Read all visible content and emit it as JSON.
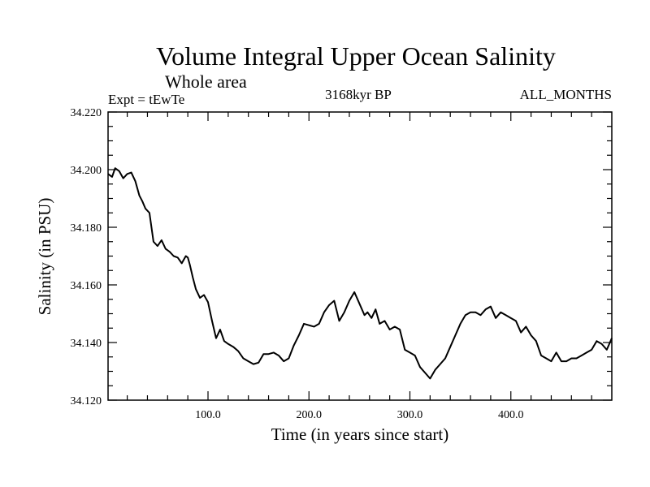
{
  "chart_data": {
    "type": "line",
    "title": "Volume Integral Upper Ocean Salinity",
    "subtitle": "Whole area",
    "annotations": {
      "left": "Expt = tEwTe",
      "center": "3168kyr BP",
      "right": "ALL_MONTHS"
    },
    "xlabel": "Time (in years since start)",
    "ylabel": "Salinity (in PSU)",
    "xlim": [
      1,
      500
    ],
    "ylim": [
      34.12,
      34.22
    ],
    "x_ticks": [
      100,
      200,
      300,
      400
    ],
    "x_tick_labels": [
      "100.0",
      "200.0",
      "300.0",
      "400.0"
    ],
    "y_ticks": [
      34.12,
      34.14,
      34.16,
      34.18,
      34.2,
      34.22
    ],
    "y_tick_labels": [
      "34.120",
      "34.140",
      "34.160",
      "34.180",
      "34.200",
      "34.220"
    ],
    "grid": false,
    "line_color": "#000000",
    "series": [
      {
        "name": "Salinity",
        "x": [
          1,
          5,
          8,
          12,
          16,
          20,
          24,
          28,
          32,
          35,
          38,
          42,
          46,
          50,
          54,
          58,
          62,
          66,
          70,
          74,
          78,
          80,
          82,
          85,
          88,
          92,
          96,
          100,
          104,
          108,
          112,
          116,
          120,
          125,
          130,
          135,
          140,
          145,
          150,
          155,
          160,
          165,
          170,
          175,
          180,
          185,
          190,
          195,
          200,
          205,
          210,
          215,
          220,
          225,
          230,
          235,
          240,
          245,
          250,
          255,
          258,
          262,
          266,
          270,
          275,
          280,
          285,
          290,
          295,
          300,
          305,
          310,
          315,
          320,
          325,
          330,
          335,
          340,
          345,
          350,
          355,
          360,
          365,
          370,
          375,
          380,
          385,
          390,
          395,
          400,
          405,
          410,
          415,
          420,
          425,
          430,
          435,
          440,
          445,
          450,
          455,
          460,
          465,
          470,
          475,
          480,
          485,
          490,
          495,
          500
        ],
        "values": [
          34.1985,
          34.1975,
          34.2005,
          34.1995,
          34.197,
          34.1985,
          34.199,
          34.196,
          34.191,
          34.189,
          34.1865,
          34.185,
          34.175,
          34.1735,
          34.1755,
          34.1725,
          34.1715,
          34.17,
          34.1695,
          34.1675,
          34.17,
          34.1695,
          34.167,
          34.1625,
          34.1585,
          34.1555,
          34.1565,
          34.154,
          34.1475,
          34.1415,
          34.1445,
          34.1405,
          34.1395,
          34.1385,
          34.137,
          34.1345,
          34.1335,
          34.1325,
          34.133,
          34.136,
          34.136,
          34.1365,
          34.1355,
          34.1335,
          34.1345,
          34.139,
          34.1425,
          34.1465,
          34.146,
          34.1455,
          34.1465,
          34.1505,
          34.153,
          34.1545,
          34.1475,
          34.1505,
          34.1545,
          34.1575,
          34.1535,
          34.1495,
          34.1505,
          34.1485,
          34.1515,
          34.1465,
          34.1475,
          34.1445,
          34.1455,
          34.1445,
          34.1375,
          34.1365,
          34.1355,
          34.1315,
          34.1295,
          34.1275,
          34.1305,
          34.1325,
          34.1345,
          34.1385,
          34.1425,
          34.1465,
          34.1495,
          34.1505,
          34.1505,
          34.1495,
          34.1515,
          34.1525,
          34.1485,
          34.1505,
          34.1495,
          34.1485,
          34.1475,
          34.1435,
          34.1455,
          34.1425,
          34.1405,
          34.1355,
          34.1345,
          34.1335,
          34.1365,
          34.1335,
          34.1335,
          34.1345,
          34.1345,
          34.1355,
          34.1365,
          34.1375,
          34.1405,
          34.1395,
          34.1375,
          34.1415
        ]
      }
    ]
  }
}
